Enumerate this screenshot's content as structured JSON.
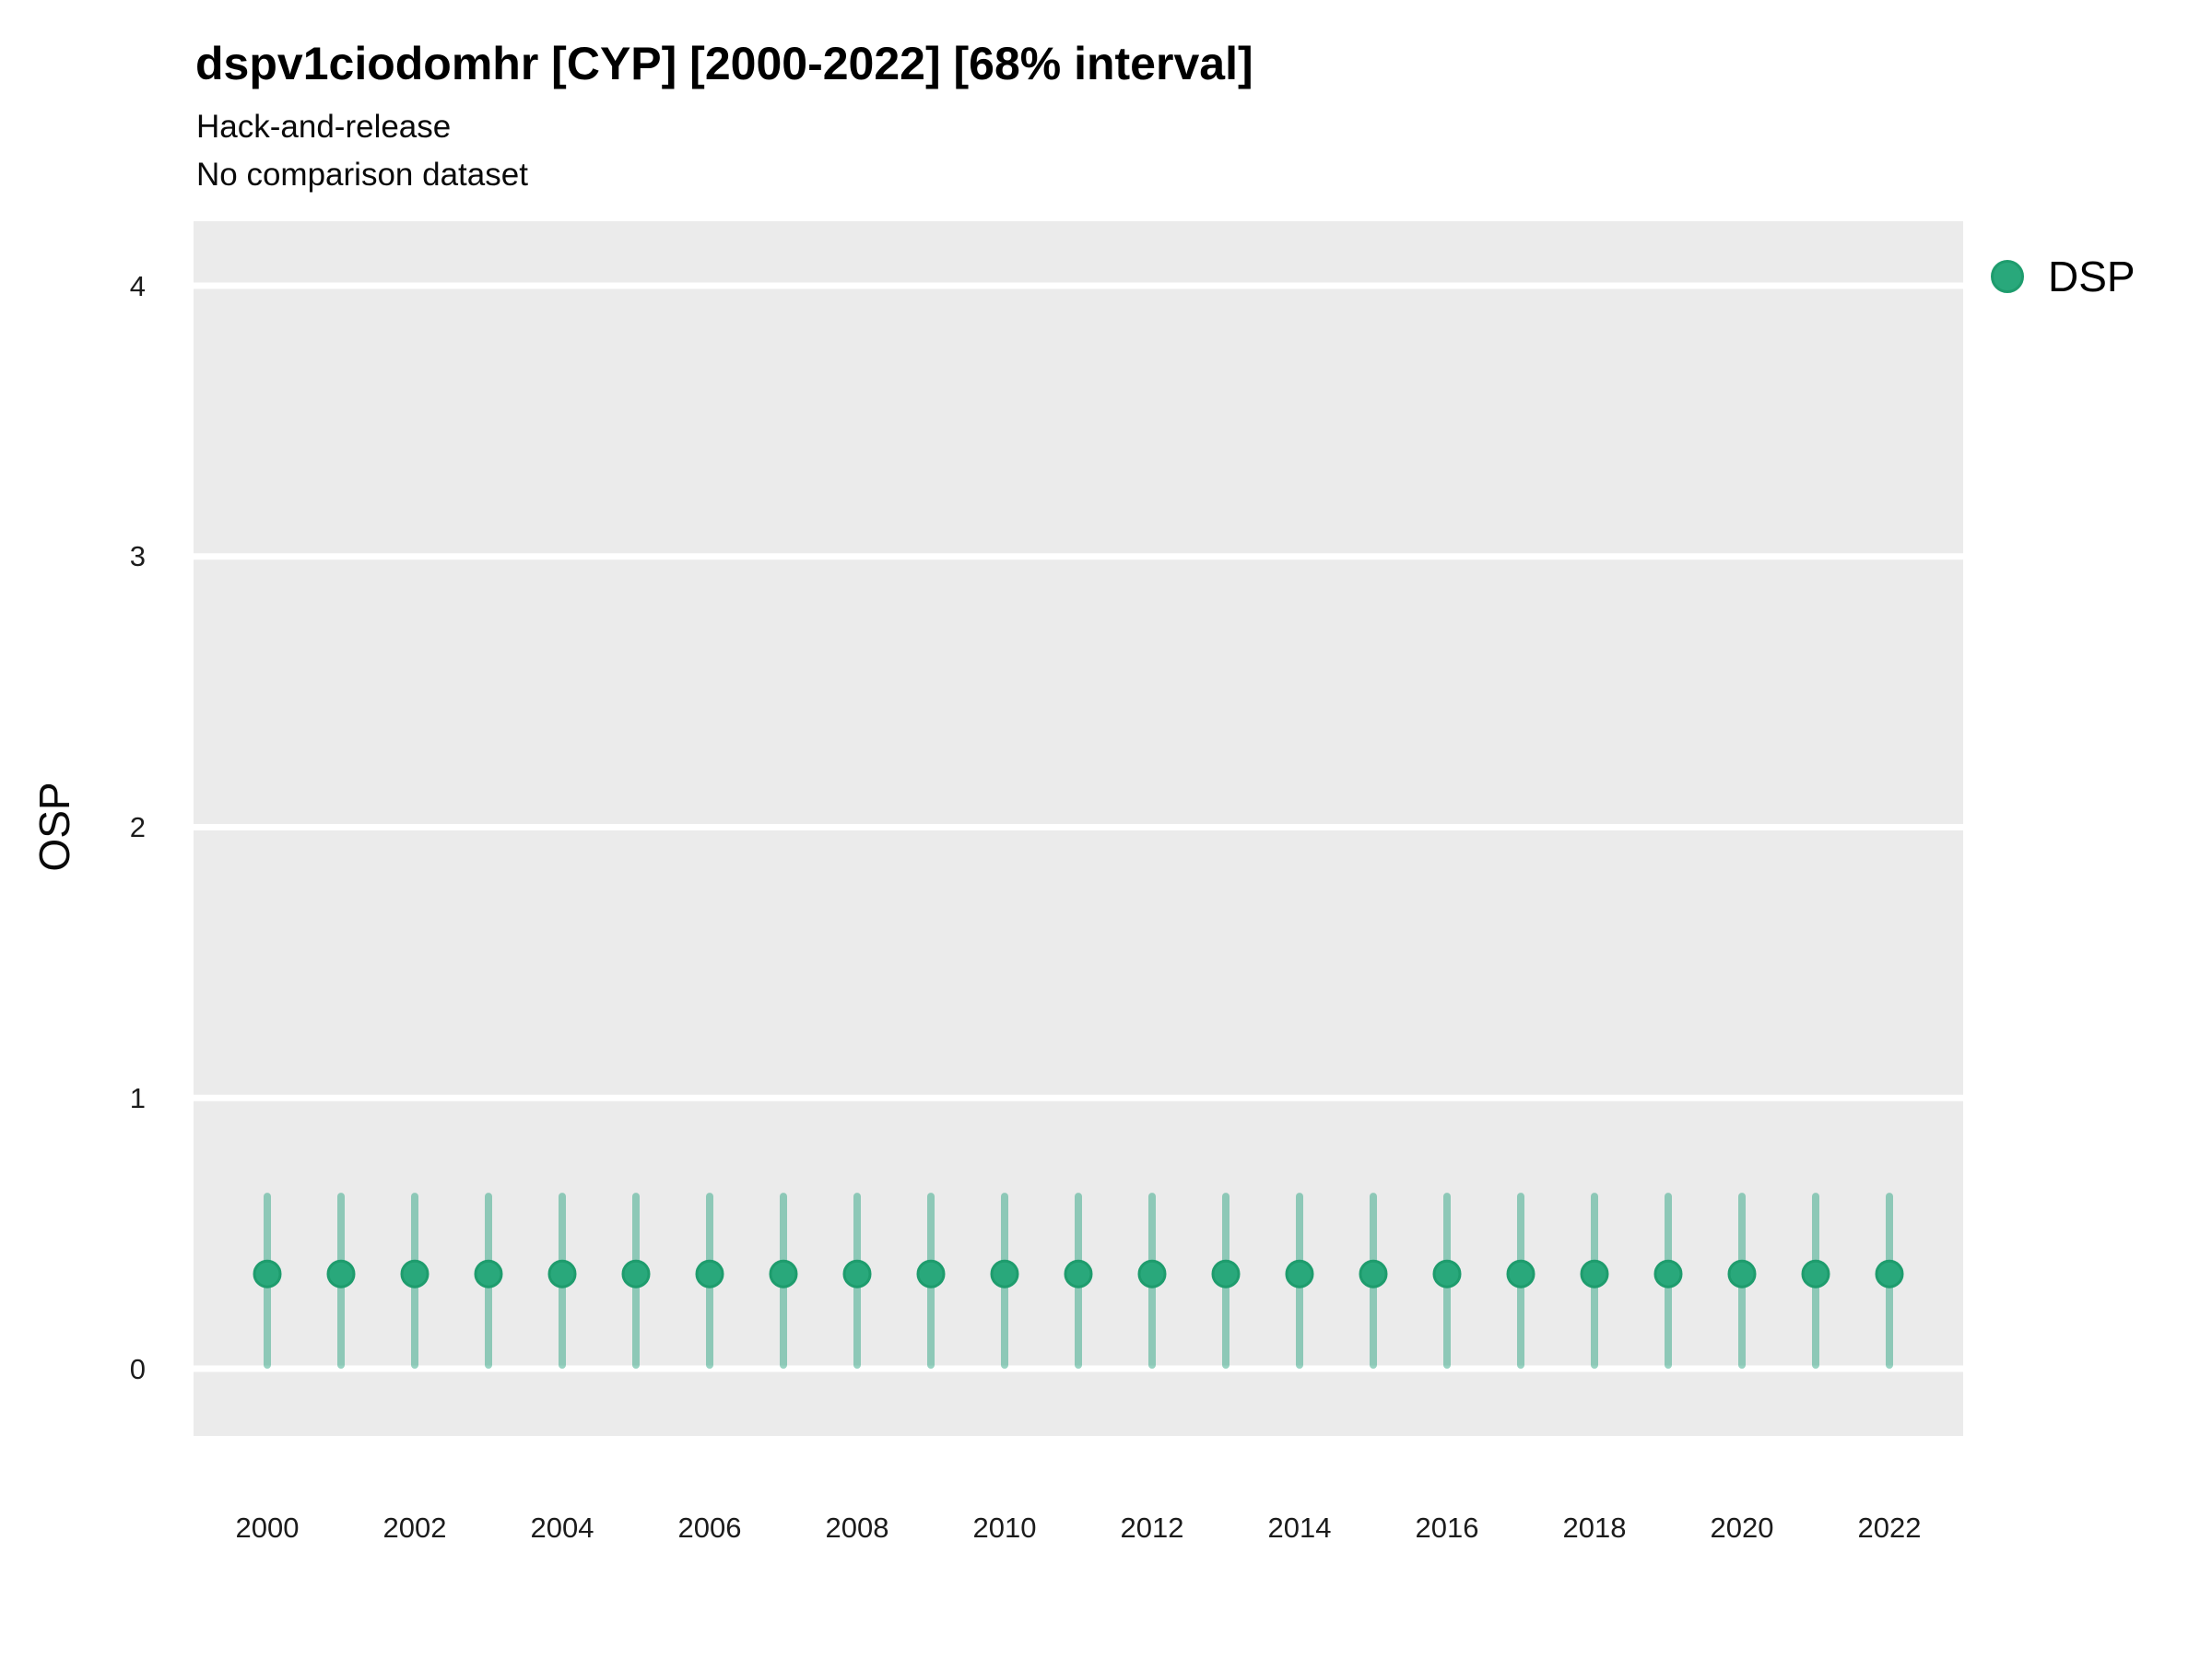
{
  "figure": {
    "title": "dspv1ciodomhr [CYP] [2000-2022] [68% interval]",
    "subtitle_line1": "Hack-and-release",
    "subtitle_line2": "No comparison dataset"
  },
  "legend": {
    "position": "right-top",
    "entries": [
      {
        "label": "DSP",
        "color": "#29A87B"
      }
    ]
  },
  "chart_data": {
    "type": "scatter",
    "variant": "pointrange-errorbar",
    "title": "dspv1ciodomhr [CYP] [2000-2022] [68% interval]",
    "subtitle": "Hack-and-release\nNo comparison dataset",
    "interval": "68%",
    "xlabel": "",
    "ylabel": "OSP",
    "x": [
      2000,
      2001,
      2002,
      2003,
      2004,
      2005,
      2006,
      2007,
      2008,
      2009,
      2010,
      2011,
      2012,
      2013,
      2014,
      2015,
      2016,
      2017,
      2018,
      2019,
      2020,
      2021,
      2022
    ],
    "series": [
      {
        "name": "DSP",
        "point": [
          0.35,
          0.35,
          0.35,
          0.35,
          0.35,
          0.35,
          0.35,
          0.35,
          0.35,
          0.35,
          0.35,
          0.35,
          0.35,
          0.35,
          0.35,
          0.35,
          0.35,
          0.35,
          0.35,
          0.35,
          0.35,
          0.35,
          0.35
        ],
        "lower": [
          0.0,
          0.0,
          0.0,
          0.0,
          0.0,
          0.0,
          0.0,
          0.0,
          0.0,
          0.0,
          0.0,
          0.0,
          0.0,
          0.0,
          0.0,
          0.0,
          0.0,
          0.0,
          0.0,
          0.0,
          0.0,
          0.0,
          0.0
        ],
        "upper": [
          0.65,
          0.65,
          0.65,
          0.65,
          0.65,
          0.65,
          0.65,
          0.65,
          0.65,
          0.65,
          0.65,
          0.65,
          0.65,
          0.65,
          0.65,
          0.65,
          0.65,
          0.65,
          0.65,
          0.65,
          0.65,
          0.65,
          0.65
        ]
      }
    ],
    "xticks": [
      2000,
      2002,
      2004,
      2006,
      2008,
      2010,
      2012,
      2014,
      2016,
      2018,
      2020,
      2022
    ],
    "yticks": [
      0,
      1,
      2,
      3,
      4
    ],
    "xlim": [
      1999,
      2023
    ],
    "ylim": [
      -0.25,
      4.24
    ],
    "grid": "horizontal-major-white",
    "legend_position": "right",
    "panel_bg": "#EBEBEB",
    "grid_color": "#FFFFFF",
    "colors": {
      "point_fill": "#29A87B",
      "point_border": "#1E9C6D",
      "interval_bar": "rgba(27,158,119,0.45)"
    }
  }
}
